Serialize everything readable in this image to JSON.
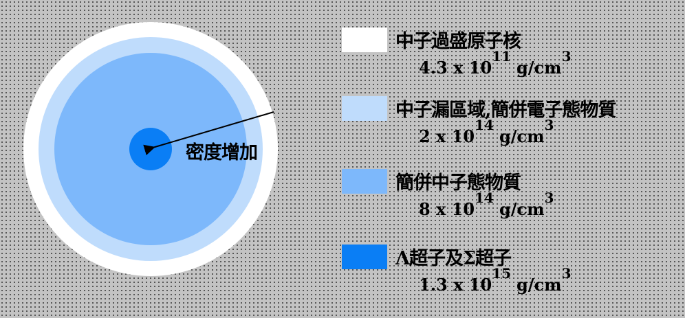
{
  "diagram": {
    "arrow_label": "密度增加",
    "layers": [
      {
        "name": "中子過盛原子核",
        "density_mantissa": "4.3 x 10",
        "density_exponent": "11",
        "density_unit": "g/cm",
        "unit_exponent": "3",
        "color": "#ffffff"
      },
      {
        "name": "中子漏區域,簡併電子態物質",
        "density_mantissa": "2 x 10",
        "density_exponent": "14",
        "density_unit": "g/cm",
        "unit_exponent": "3",
        "color": "#bfdcfc"
      },
      {
        "name": "簡併中子態物質",
        "density_mantissa": "8 x 10",
        "density_exponent": "14",
        "density_unit": "g/cm",
        "unit_exponent": "3",
        "color": "#7db8fb"
      },
      {
        "name": "Λ超子及Σ超子",
        "density_mantissa": "1.3 x 10",
        "density_exponent": "15",
        "density_unit": "g/cm",
        "unit_exponent": "3",
        "color": "#0a7ef5"
      }
    ]
  }
}
